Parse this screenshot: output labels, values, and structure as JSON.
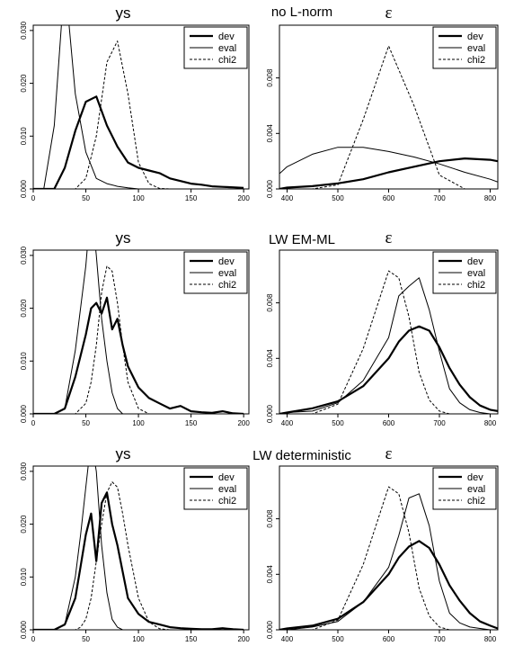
{
  "row_titles": [
    "no L-norm",
    "LW  EM-ML",
    "LW  deterministic"
  ],
  "panel_titles": {
    "ys": "ys",
    "eps": "ε"
  },
  "legend_labels": [
    "dev",
    "eval",
    "chi2"
  ],
  "chart_data": [
    {
      "type": "line",
      "row": 0,
      "title": "ys",
      "xlim": [
        0,
        205
      ],
      "ylim": [
        0,
        0.031
      ],
      "xticks": [
        "0",
        "50",
        "100",
        "150",
        "200"
      ],
      "yticks": [
        "0.000",
        "0.010",
        "0.020",
        "0.030"
      ],
      "x": [
        0,
        10,
        20,
        30,
        40,
        50,
        60,
        70,
        80,
        90,
        100,
        110,
        120,
        130,
        140,
        150,
        160,
        170,
        180,
        190,
        200
      ],
      "series": [
        {
          "name": "dev",
          "style": "thick",
          "values": [
            0,
            0,
            0,
            0.004,
            0.011,
            0.0165,
            0.0175,
            0.012,
            0.008,
            0.005,
            0.004,
            0.0035,
            0.003,
            0.002,
            0.0015,
            0.001,
            0.0008,
            0.0005,
            0.0004,
            0.0003,
            0.0002
          ]
        },
        {
          "name": "eval",
          "style": "thin",
          "values": [
            0,
            0,
            0.012,
            0.04,
            0.018,
            0.007,
            0.002,
            0.001,
            0.0005,
            0.0002,
            0,
            null,
            null,
            null,
            null,
            null,
            null,
            null,
            null,
            null,
            null
          ]
        },
        {
          "name": "chi2",
          "style": "dashed",
          "values": [
            0,
            0,
            0,
            0,
            0,
            0.002,
            0.01,
            0.024,
            0.028,
            0.018,
            0.005,
            0.001,
            0.0001,
            0,
            0,
            0,
            0,
            0,
            0,
            0,
            0
          ]
        }
      ]
    },
    {
      "type": "line",
      "row": 0,
      "title": "ε",
      "xlim": [
        385,
        815
      ],
      "ylim": [
        0,
        0.0118
      ],
      "xticks": [
        "400",
        "500",
        "600",
        "700",
        "800"
      ],
      "yticks": [
        "0.000",
        "0.004",
        "0.008"
      ],
      "x": [
        385,
        400,
        450,
        500,
        550,
        600,
        650,
        700,
        750,
        800,
        815
      ],
      "series": [
        {
          "name": "dev",
          "style": "thick",
          "values": [
            0,
            0.0001,
            0.0002,
            0.0004,
            0.0007,
            0.0012,
            0.0016,
            0.002,
            0.0022,
            0.0021,
            0.002
          ]
        },
        {
          "name": "eval",
          "style": "thin",
          "values": [
            0.0011,
            0.0016,
            0.0025,
            0.003,
            0.003,
            0.0027,
            0.0023,
            0.0018,
            0.0012,
            0.0007,
            0.0005
          ]
        },
        {
          "name": "chi2",
          "style": "dashed",
          "values": [
            0,
            0,
            0,
            0.0003,
            0.005,
            0.0103,
            0.006,
            0.001,
            0,
            0,
            0
          ]
        }
      ]
    },
    {
      "type": "line",
      "row": 1,
      "title": "ys",
      "xlim": [
        0,
        205
      ],
      "ylim": [
        0,
        0.031
      ],
      "xticks": [
        "0",
        "50",
        "100",
        "150",
        "200"
      ],
      "yticks": [
        "0.000",
        "0.010",
        "0.020",
        "0.030"
      ],
      "x": [
        0,
        20,
        30,
        40,
        50,
        55,
        60,
        65,
        70,
        75,
        80,
        85,
        90,
        100,
        110,
        120,
        130,
        140,
        150,
        160,
        170,
        180,
        190,
        200
      ],
      "series": [
        {
          "name": "dev",
          "style": "thick",
          "values": [
            0,
            0,
            0.001,
            0.007,
            0.015,
            0.02,
            0.021,
            0.019,
            0.022,
            0.016,
            0.018,
            0.013,
            0.009,
            0.005,
            0.003,
            0.002,
            0.001,
            0.0015,
            0.0005,
            0.0003,
            0.0002,
            0.0005,
            0.0001,
            0
          ]
        },
        {
          "name": "eval",
          "style": "thin",
          "values": [
            0,
            0,
            0.001,
            0.012,
            0.028,
            0.04,
            0.03,
            0.018,
            0.01,
            0.004,
            0.001,
            0,
            0,
            null,
            null,
            null,
            null,
            null,
            null,
            null,
            null,
            null,
            null,
            null
          ]
        },
        {
          "name": "chi2",
          "style": "dashed",
          "values": [
            0,
            0,
            0,
            0,
            0.002,
            0.006,
            0.013,
            0.023,
            0.028,
            0.027,
            0.021,
            0.013,
            0.006,
            0.001,
            0,
            0,
            0,
            0,
            0,
            0,
            0,
            0,
            0,
            0
          ]
        }
      ]
    },
    {
      "type": "line",
      "row": 1,
      "title": "ε",
      "xlim": [
        385,
        815
      ],
      "ylim": [
        0,
        0.0118
      ],
      "xticks": [
        "400",
        "500",
        "600",
        "700",
        "800"
      ],
      "yticks": [
        "0.000",
        "0.004",
        "0.008"
      ],
      "x": [
        385,
        400,
        450,
        500,
        550,
        600,
        620,
        640,
        660,
        680,
        700,
        720,
        740,
        760,
        780,
        800,
        815
      ],
      "series": [
        {
          "name": "dev",
          "style": "thick",
          "values": [
            0,
            0.0001,
            0.0004,
            0.0009,
            0.002,
            0.004,
            0.0052,
            0.006,
            0.0063,
            0.006,
            0.0048,
            0.0033,
            0.0021,
            0.0012,
            0.0006,
            0.0003,
            0.0002
          ]
        },
        {
          "name": "eval",
          "style": "thin",
          "values": [
            0,
            0.0001,
            0.0002,
            0.0008,
            0.0024,
            0.0055,
            0.0085,
            0.0092,
            0.0098,
            0.0075,
            0.0045,
            0.0018,
            0.0008,
            0.0003,
            0.0001,
            0,
            0
          ]
        },
        {
          "name": "chi2",
          "style": "dashed",
          "values": [
            0,
            0,
            0,
            0.0007,
            0.0047,
            0.0103,
            0.0098,
            0.007,
            0.003,
            0.001,
            0.0002,
            0,
            0,
            0,
            0,
            0,
            0
          ]
        }
      ]
    },
    {
      "type": "line",
      "row": 2,
      "title": "ys",
      "xlim": [
        0,
        205
      ],
      "ylim": [
        0,
        0.031
      ],
      "xticks": [
        "0",
        "50",
        "100",
        "150",
        "200"
      ],
      "yticks": [
        "0.000",
        "0.010",
        "0.020",
        "0.030"
      ],
      "x": [
        0,
        20,
        30,
        40,
        45,
        50,
        55,
        60,
        65,
        70,
        75,
        80,
        85,
        90,
        100,
        110,
        120,
        130,
        140,
        150,
        160,
        170,
        180,
        190,
        200
      ],
      "series": [
        {
          "name": "dev",
          "style": "thick",
          "values": [
            0,
            0,
            0.001,
            0.006,
            0.012,
            0.018,
            0.022,
            0.013,
            0.024,
            0.026,
            0.02,
            0.016,
            0.011,
            0.006,
            0.003,
            0.0015,
            0.001,
            0.0005,
            0.0003,
            0.0002,
            0.0001,
            0.0001,
            0.0003,
            0.0001,
            0
          ]
        },
        {
          "name": "eval",
          "style": "thin",
          "values": [
            0,
            0,
            0.001,
            0.01,
            0.018,
            0.027,
            0.036,
            0.03,
            0.016,
            0.007,
            0.002,
            0.0005,
            0,
            0,
            null,
            null,
            null,
            null,
            null,
            null,
            null,
            null,
            null,
            null,
            null
          ]
        },
        {
          "name": "chi2",
          "style": "dashed",
          "values": [
            0,
            0,
            0,
            0,
            0.0005,
            0.002,
            0.006,
            0.013,
            0.02,
            0.026,
            0.028,
            0.027,
            0.022,
            0.016,
            0.006,
            0.0015,
            0.0002,
            0,
            0,
            0,
            0,
            0,
            0,
            0,
            0
          ]
        }
      ]
    },
    {
      "type": "line",
      "row": 2,
      "title": "ε",
      "xlim": [
        385,
        815
      ],
      "ylim": [
        0,
        0.0118
      ],
      "xticks": [
        "400",
        "500",
        "600",
        "700",
        "800"
      ],
      "yticks": [
        "0.000",
        "0.004",
        "0.008"
      ],
      "x": [
        385,
        400,
        450,
        500,
        550,
        600,
        620,
        640,
        660,
        680,
        700,
        720,
        740,
        760,
        780,
        800,
        815
      ],
      "series": [
        {
          "name": "dev",
          "style": "thick",
          "values": [
            0,
            0.0001,
            0.0003,
            0.0008,
            0.002,
            0.004,
            0.0052,
            0.006,
            0.0064,
            0.0059,
            0.0047,
            0.0032,
            0.0021,
            0.0012,
            0.0006,
            0.0003,
            0.0001
          ]
        },
        {
          "name": "eval",
          "style": "thin",
          "values": [
            0,
            0,
            0.0002,
            0.0006,
            0.002,
            0.0045,
            0.0068,
            0.0095,
            0.0098,
            0.0075,
            0.0035,
            0.0012,
            0.0005,
            0.0002,
            0.0001,
            0,
            0
          ]
        },
        {
          "name": "chi2",
          "style": "dashed",
          "values": [
            0,
            0,
            0,
            0.0007,
            0.0047,
            0.0103,
            0.0098,
            0.007,
            0.003,
            0.001,
            0.0002,
            0,
            0,
            0,
            0,
            0,
            0
          ]
        }
      ]
    }
  ]
}
